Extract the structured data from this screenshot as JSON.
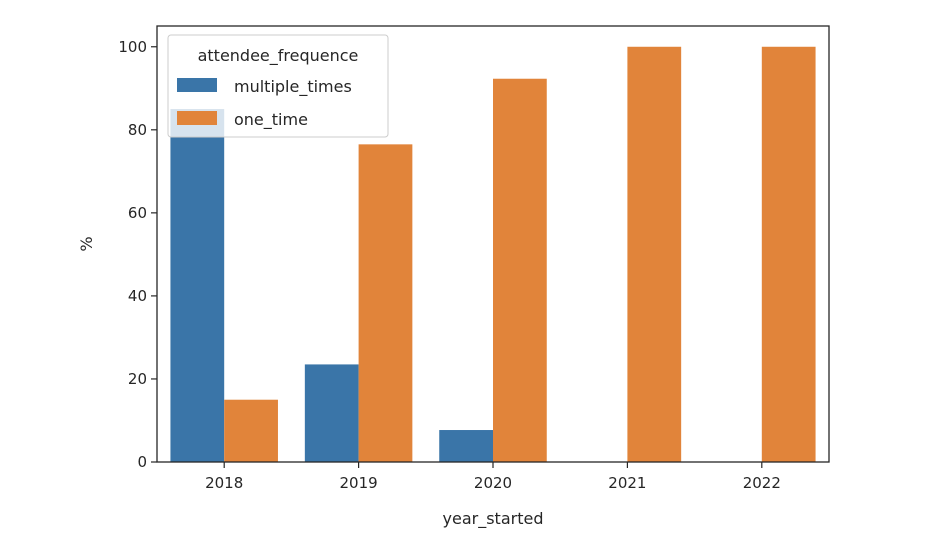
{
  "chart_data": {
    "type": "bar",
    "title": "",
    "xlabel": "year_started",
    "ylabel": "%",
    "categories": [
      "2018",
      "2019",
      "2020",
      "2021",
      "2022"
    ],
    "series": [
      {
        "name": "multiple_times",
        "color": "#3a75a8",
        "values": [
          85.0,
          23.5,
          7.7,
          0,
          0
        ]
      },
      {
        "name": "one_time",
        "color": "#e1843a",
        "values": [
          15.0,
          76.5,
          92.3,
          100,
          100
        ]
      }
    ],
    "ylim": [
      0,
      105
    ],
    "yticks": [
      0,
      20,
      40,
      60,
      80,
      100
    ],
    "grid": false,
    "legend": {
      "title": "attendee_frequence",
      "placement": "top-left"
    }
  }
}
